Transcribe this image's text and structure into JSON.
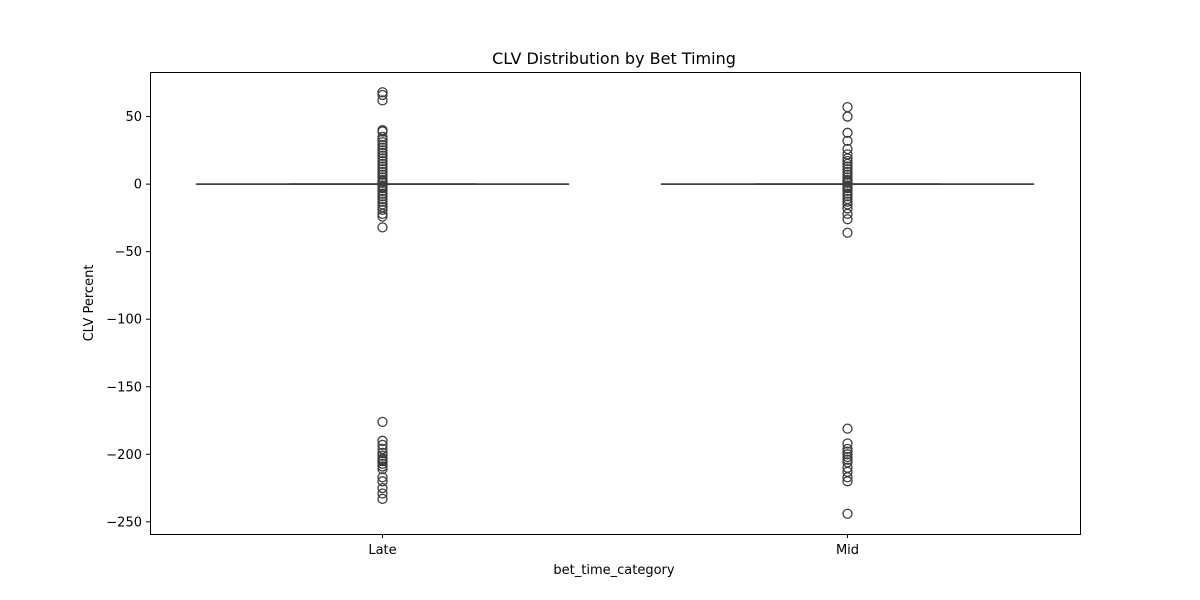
{
  "chart_data": {
    "type": "box",
    "title": "CLV Distribution by Bet Timing",
    "xlabel": "bet_time_category",
    "ylabel": "CLV Percent",
    "categories": [
      "Late",
      "Mid"
    ],
    "ylim": [
      -259,
      83
    ],
    "yticks": [
      50,
      0,
      -50,
      -100,
      -150,
      -200,
      -250
    ],
    "ytick_labels": [
      "50",
      "0",
      "−50",
      "−100",
      "−150",
      "−200",
      "−250"
    ],
    "grid": false,
    "colors": {
      "box_line": "#3d3d3d",
      "outlier_edge": "#3d3d3d",
      "frame": "#000000"
    },
    "series": [
      {
        "category": "Late",
        "q1": 0,
        "median": 0,
        "q3": 0,
        "whisker_low": 0,
        "whisker_high": 0,
        "outliers": [
          68,
          66,
          62,
          40,
          39,
          35,
          33,
          31,
          29,
          27,
          25,
          23,
          21,
          19,
          17,
          15,
          13,
          11,
          9,
          7,
          5,
          3,
          2,
          1,
          -1,
          -2,
          -3,
          -5,
          -7,
          -9,
          -11,
          -13,
          -15,
          -17,
          -19,
          -22,
          -24,
          -32,
          -176,
          -190,
          -193,
          -196,
          -199,
          -201,
          -203,
          -204,
          -205,
          -207,
          -209,
          -211,
          -217,
          -220,
          -225,
          -229,
          -233
        ]
      },
      {
        "category": "Mid",
        "q1": 0,
        "median": 0,
        "q3": 0,
        "whisker_low": 0,
        "whisker_high": 0,
        "outliers": [
          57,
          50,
          38,
          32,
          26,
          22,
          19,
          17,
          15,
          13,
          11,
          9,
          7,
          5,
          3,
          2,
          1,
          -1,
          -2,
          -3,
          -5,
          -7,
          -9,
          -11,
          -13,
          -15,
          -18,
          -22,
          -26,
          -36,
          -181,
          -192,
          -196,
          -198,
          -200,
          -202,
          -204,
          -206,
          -210,
          -213,
          -217,
          -220,
          -244
        ]
      }
    ]
  }
}
